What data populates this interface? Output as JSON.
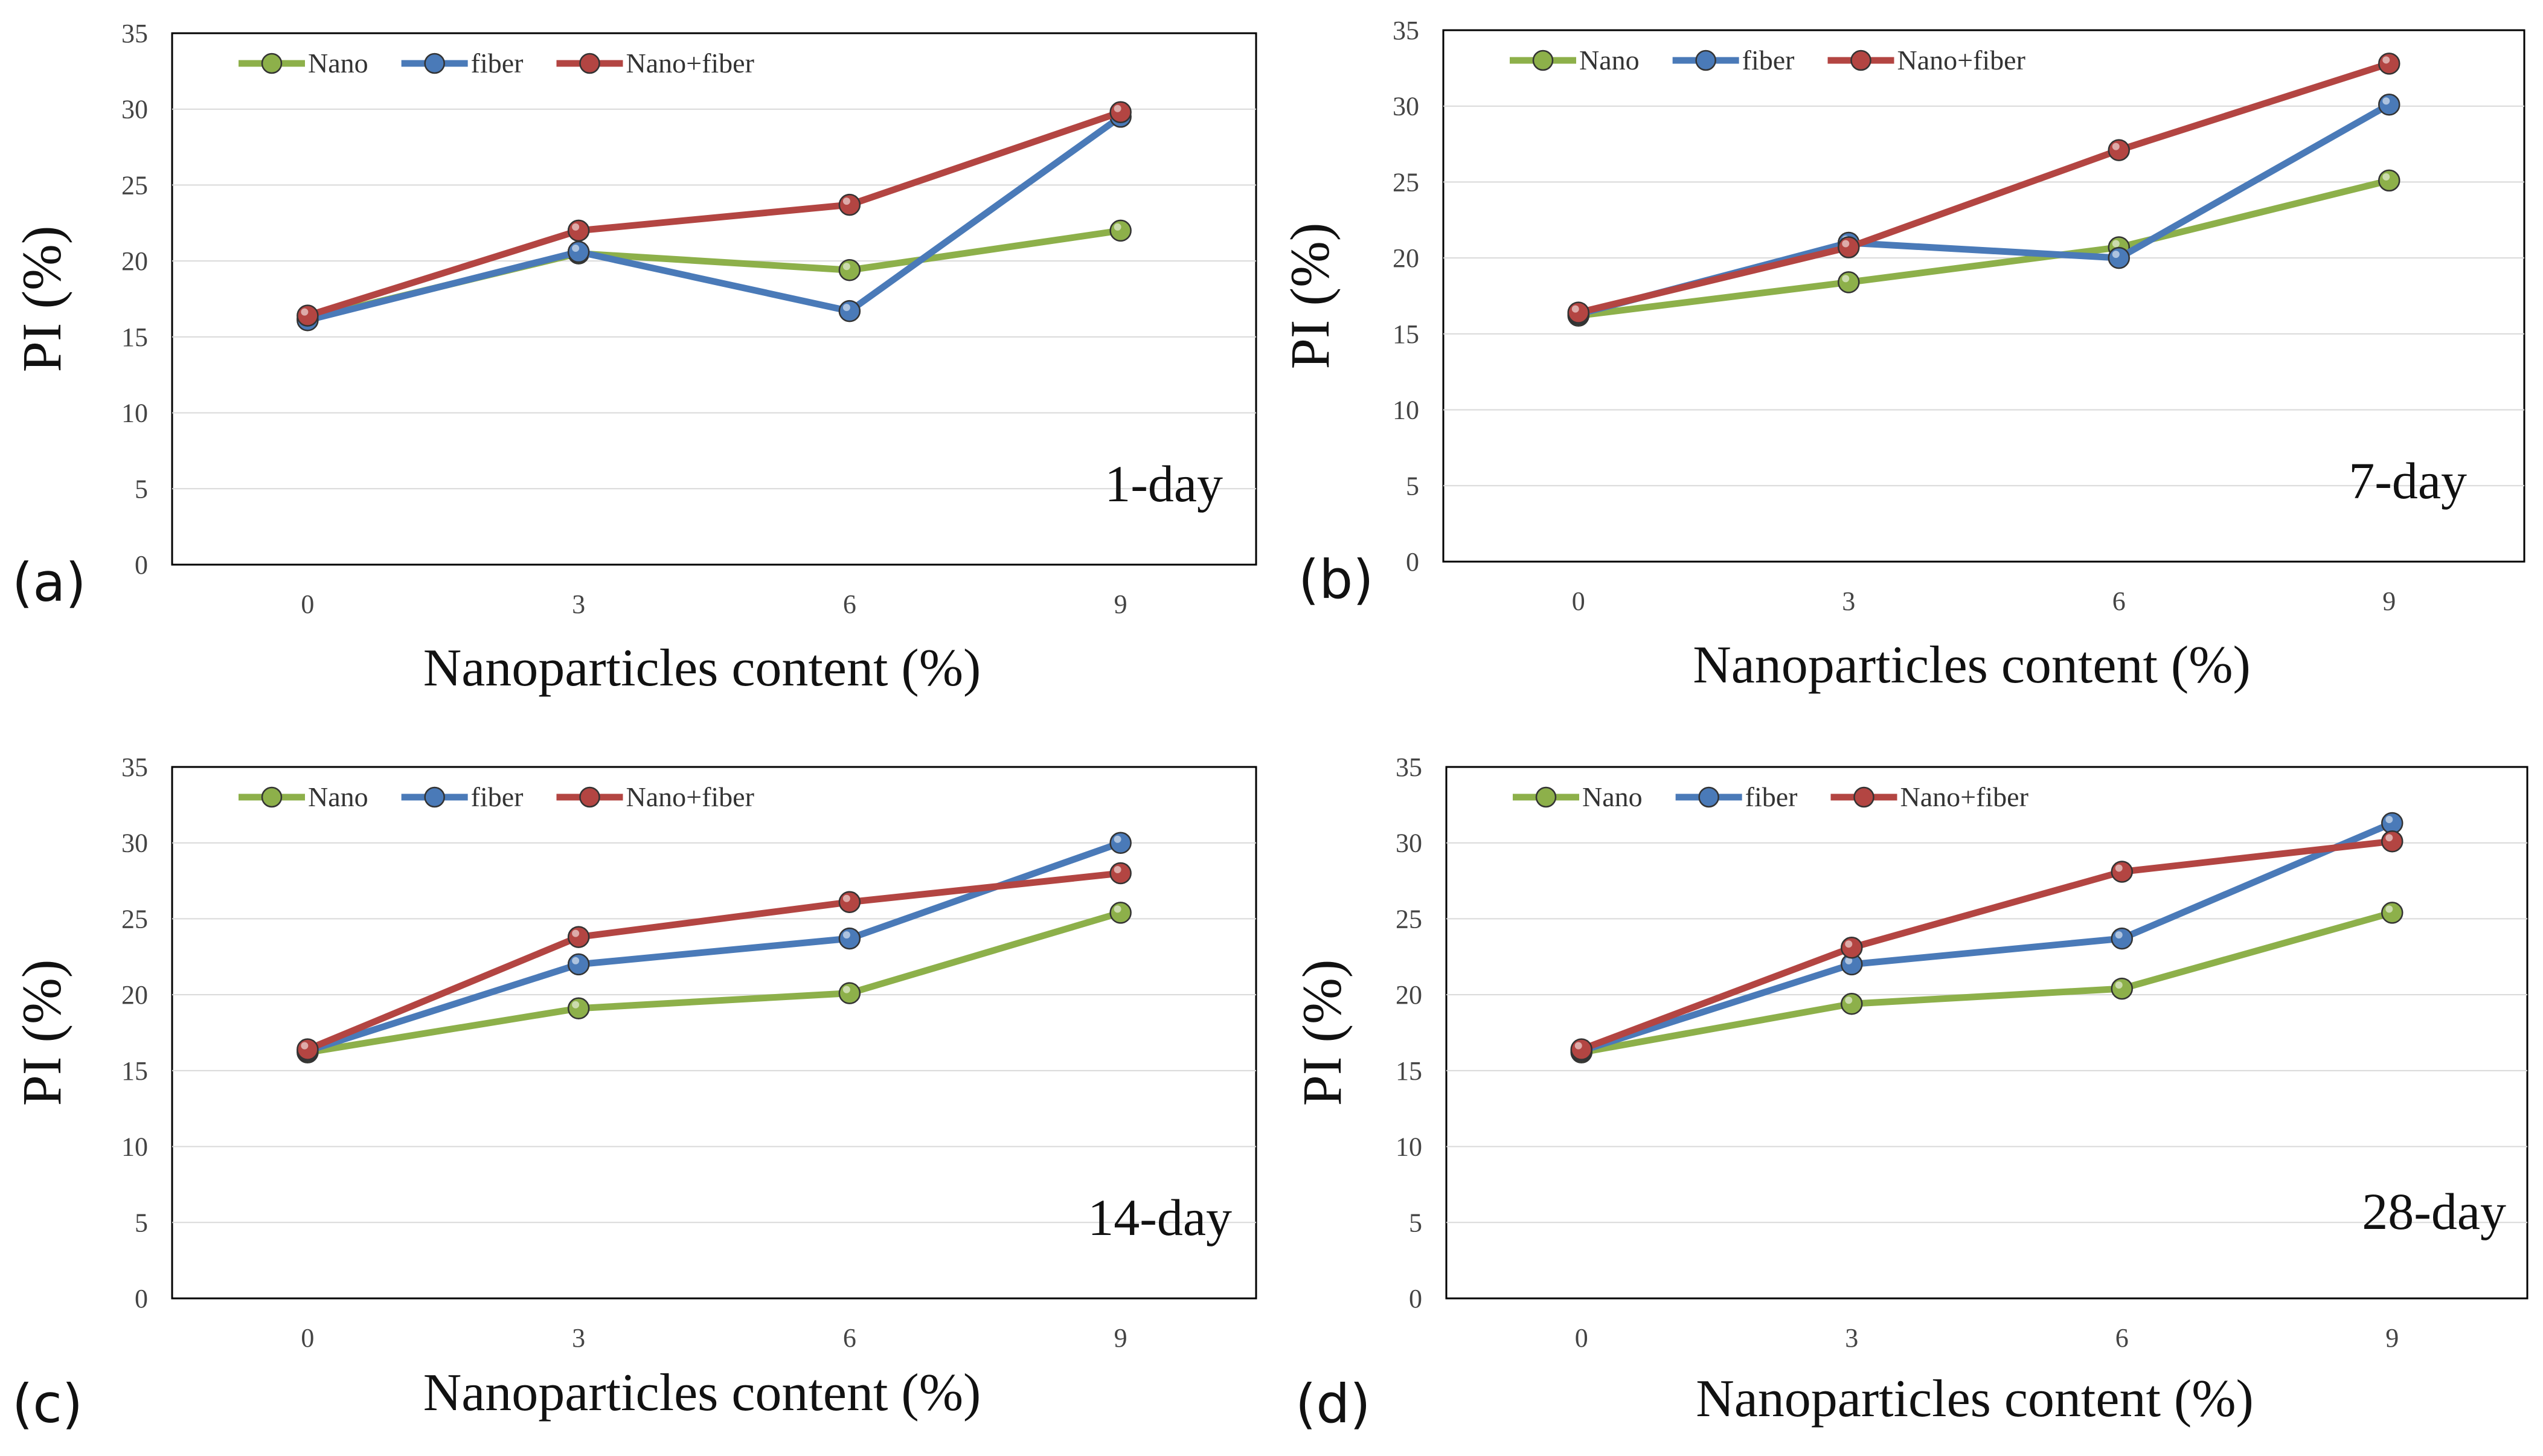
{
  "colors": {
    "Nano": "#8db04a",
    "fiber": "#4a7ab8",
    "Nano+fiber": "#b34542"
  },
  "chart_data": [
    {
      "type": "line",
      "panel": "(a)",
      "annotation": "1-day",
      "xlabel": "Nanoparticles content (%)",
      "ylabel": "PI (%)",
      "ylim": [
        0,
        35
      ],
      "yticks": [
        "0",
        "5",
        "10",
        "15",
        "20",
        "25",
        "30",
        "35"
      ],
      "categories": [
        "0",
        "3",
        "6",
        "9"
      ],
      "legend_position": "top-left",
      "grid": true,
      "series": [
        {
          "name": "Nano",
          "values": [
            16.2,
            20.5,
            19.4,
            22.0
          ]
        },
        {
          "name": "fiber",
          "values": [
            16.1,
            20.6,
            16.7,
            29.5
          ]
        },
        {
          "name": "Nano+fiber",
          "values": [
            16.4,
            22.0,
            23.7,
            29.8
          ]
        }
      ]
    },
    {
      "type": "line",
      "panel": "(b)",
      "annotation": "7-day",
      "xlabel": "Nanoparticles content (%)",
      "ylabel": "PI (%)",
      "ylim": [
        0,
        35
      ],
      "yticks": [
        "0",
        "5",
        "10",
        "15",
        "20",
        "25",
        "30",
        "35"
      ],
      "categories": [
        "0",
        "3",
        "6",
        "9"
      ],
      "legend_position": "top-left",
      "grid": true,
      "series": [
        {
          "name": "Nano",
          "values": [
            16.2,
            18.4,
            20.7,
            25.1
          ]
        },
        {
          "name": "fiber",
          "values": [
            16.3,
            21.0,
            20.0,
            30.1
          ]
        },
        {
          "name": "Nano+fiber",
          "values": [
            16.4,
            20.7,
            27.1,
            32.8
          ]
        }
      ]
    },
    {
      "type": "line",
      "panel": "(c)",
      "annotation": "14-day",
      "xlabel": "Nanoparticles content (%)",
      "ylabel": "PI (%)",
      "ylim": [
        0,
        35
      ],
      "yticks": [
        "0",
        "5",
        "10",
        "15",
        "20",
        "25",
        "30",
        "35"
      ],
      "categories": [
        "0",
        "3",
        "6",
        "9"
      ],
      "legend_position": "top-left",
      "grid": true,
      "series": [
        {
          "name": "Nano",
          "values": [
            16.2,
            19.1,
            20.1,
            25.4
          ]
        },
        {
          "name": "fiber",
          "values": [
            16.3,
            22.0,
            23.7,
            30.0
          ]
        },
        {
          "name": "Nano+fiber",
          "values": [
            16.4,
            23.8,
            26.1,
            28.0
          ]
        }
      ]
    },
    {
      "type": "line",
      "panel": "(d)",
      "annotation": "28-day",
      "xlabel": "Nanoparticles content (%)",
      "ylabel": "PI (%)",
      "ylim": [
        0,
        35
      ],
      "yticks": [
        "0",
        "5",
        "10",
        "15",
        "20",
        "25",
        "30",
        "35"
      ],
      "categories": [
        "0",
        "3",
        "6",
        "9"
      ],
      "legend_position": "top-left",
      "grid": true,
      "series": [
        {
          "name": "Nano",
          "values": [
            16.2,
            19.4,
            20.4,
            25.4
          ]
        },
        {
          "name": "fiber",
          "values": [
            16.3,
            22.0,
            23.7,
            31.3
          ]
        },
        {
          "name": "Nano+fiber",
          "values": [
            16.4,
            23.1,
            28.1,
            30.1
          ]
        }
      ]
    }
  ]
}
